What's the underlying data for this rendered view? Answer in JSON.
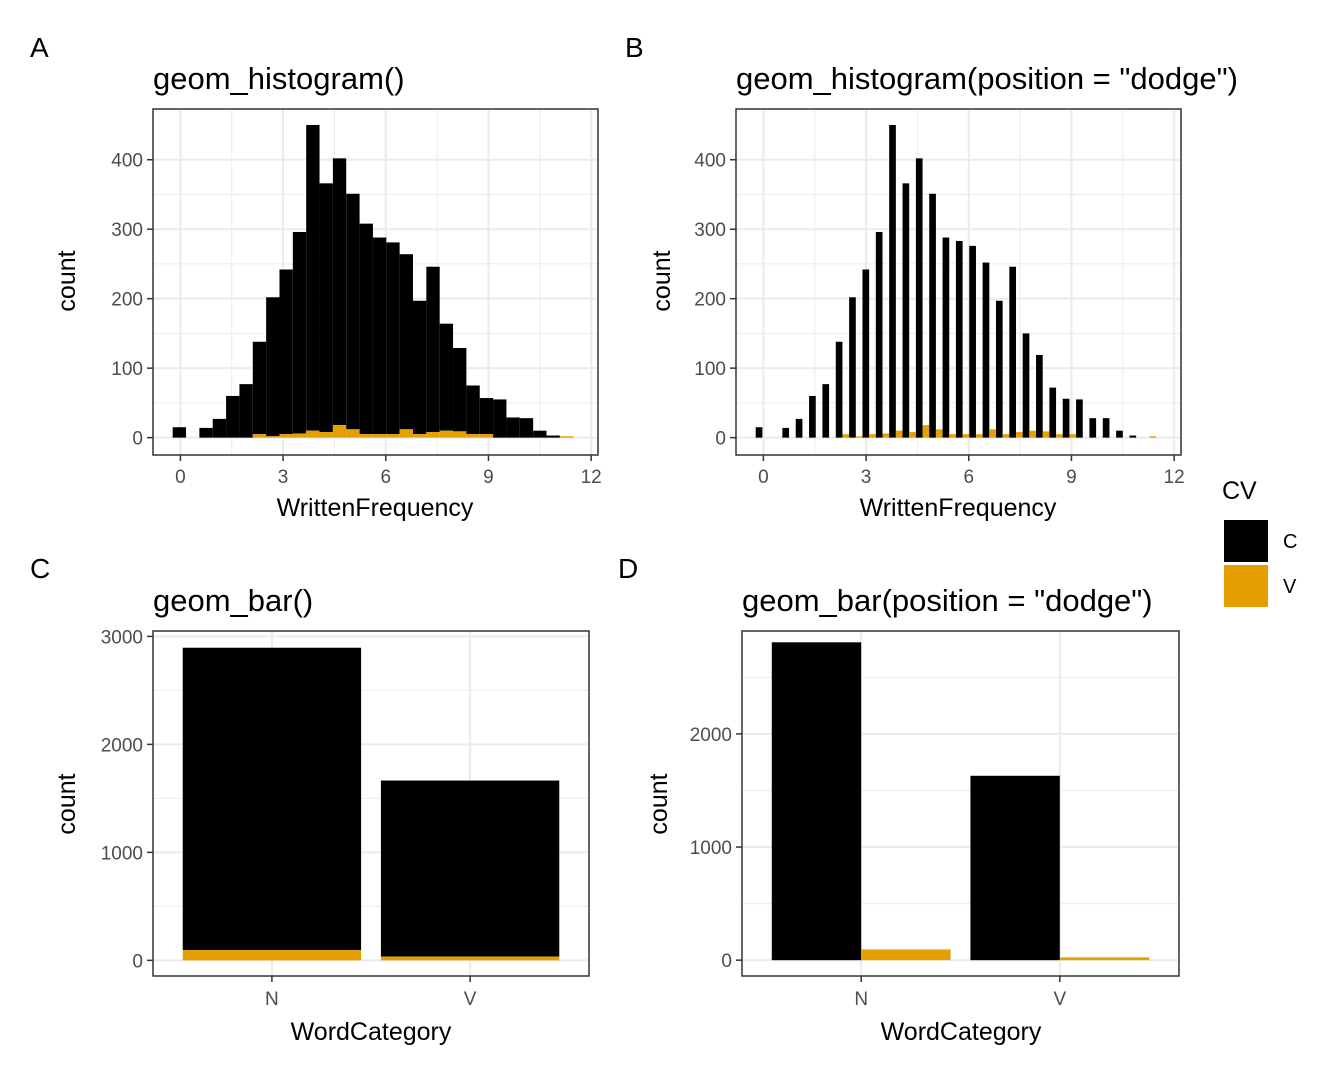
{
  "legend": {
    "title": "CV",
    "items": [
      {
        "label": "C",
        "color": "#000000"
      },
      {
        "label": "V",
        "color": "#E69F00"
      }
    ]
  },
  "chart_data": [
    {
      "tag": "A",
      "type": "bar",
      "subtype": "histogram-stacked",
      "title": "geom_histogram()",
      "xlabel": "WrittenFrequency",
      "ylabel": "count",
      "xlim": [
        -0.8,
        12.2
      ],
      "ylim": [
        -25,
        473
      ],
      "xticks": [
        0,
        3,
        6,
        9,
        12
      ],
      "yticks": [
        0,
        100,
        200,
        300,
        400
      ],
      "bin_width": 0.39,
      "bins": [
        {
          "x": -0.03,
          "C": 15,
          "V": 0
        },
        {
          "x": 0.75,
          "C": 14,
          "V": 0
        },
        {
          "x": 1.14,
          "C": 27,
          "V": 0
        },
        {
          "x": 1.53,
          "C": 60,
          "V": 0
        },
        {
          "x": 1.92,
          "C": 77,
          "V": 0
        },
        {
          "x": 2.31,
          "C": 133,
          "V": 5
        },
        {
          "x": 2.7,
          "C": 200,
          "V": 2
        },
        {
          "x": 3.09,
          "C": 237,
          "V": 5
        },
        {
          "x": 3.48,
          "C": 290,
          "V": 6
        },
        {
          "x": 3.87,
          "C": 440,
          "V": 10
        },
        {
          "x": 4.26,
          "C": 358,
          "V": 8
        },
        {
          "x": 4.65,
          "C": 384,
          "V": 18
        },
        {
          "x": 5.04,
          "C": 339,
          "V": 12
        },
        {
          "x": 5.43,
          "C": 303,
          "V": 5
        },
        {
          "x": 5.82,
          "C": 283,
          "V": 5
        },
        {
          "x": 6.21,
          "C": 276,
          "V": 5
        },
        {
          "x": 6.6,
          "C": 252,
          "V": 12
        },
        {
          "x": 6.99,
          "C": 192,
          "V": 5
        },
        {
          "x": 7.38,
          "C": 238,
          "V": 8
        },
        {
          "x": 7.77,
          "C": 154,
          "V": 10
        },
        {
          "x": 8.16,
          "C": 120,
          "V": 9
        },
        {
          "x": 8.55,
          "C": 70,
          "V": 5
        },
        {
          "x": 8.94,
          "C": 52,
          "V": 5
        },
        {
          "x": 9.33,
          "C": 55,
          "V": 0
        },
        {
          "x": 9.72,
          "C": 29,
          "V": 0
        },
        {
          "x": 10.11,
          "C": 28,
          "V": 0
        },
        {
          "x": 10.5,
          "C": 10,
          "V": 0
        },
        {
          "x": 10.89,
          "C": 3,
          "V": 0
        },
        {
          "x": 11.28,
          "C": 0,
          "V": 2
        }
      ]
    },
    {
      "tag": "B",
      "type": "bar",
      "subtype": "histogram-dodge",
      "title": "geom_histogram(position = \"dodge\")",
      "xlabel": "WrittenFrequency",
      "ylabel": "count",
      "xlim": [
        -0.8,
        12.2
      ],
      "ylim": [
        -25,
        473
      ],
      "xticks": [
        0,
        3,
        6,
        9,
        12
      ],
      "yticks": [
        0,
        100,
        200,
        300,
        400
      ],
      "bin_width": 0.39,
      "bins": [
        {
          "x": -0.03,
          "C": 15,
          "V": 0
        },
        {
          "x": 0.75,
          "C": 14,
          "V": 0
        },
        {
          "x": 1.14,
          "C": 27,
          "V": 0
        },
        {
          "x": 1.53,
          "C": 60,
          "V": 0
        },
        {
          "x": 1.92,
          "C": 77,
          "V": 0
        },
        {
          "x": 2.31,
          "C": 138,
          "V": 5
        },
        {
          "x": 2.7,
          "C": 202,
          "V": 2
        },
        {
          "x": 3.09,
          "C": 242,
          "V": 5
        },
        {
          "x": 3.48,
          "C": 296,
          "V": 6
        },
        {
          "x": 3.87,
          "C": 450,
          "V": 10
        },
        {
          "x": 4.26,
          "C": 366,
          "V": 8
        },
        {
          "x": 4.65,
          "C": 402,
          "V": 18
        },
        {
          "x": 5.04,
          "C": 351,
          "V": 12
        },
        {
          "x": 5.43,
          "C": 288,
          "V": 5
        },
        {
          "x": 5.82,
          "C": 283,
          "V": 5
        },
        {
          "x": 6.21,
          "C": 276,
          "V": 5
        },
        {
          "x": 6.6,
          "C": 252,
          "V": 12
        },
        {
          "x": 6.99,
          "C": 197,
          "V": 5
        },
        {
          "x": 7.38,
          "C": 246,
          "V": 8
        },
        {
          "x": 7.77,
          "C": 150,
          "V": 10
        },
        {
          "x": 8.16,
          "C": 119,
          "V": 9
        },
        {
          "x": 8.55,
          "C": 72,
          "V": 5
        },
        {
          "x": 8.94,
          "C": 56,
          "V": 5
        },
        {
          "x": 9.33,
          "C": 55,
          "V": 0
        },
        {
          "x": 9.72,
          "C": 28,
          "V": 0
        },
        {
          "x": 10.11,
          "C": 28,
          "V": 0
        },
        {
          "x": 10.5,
          "C": 10,
          "V": 0
        },
        {
          "x": 10.89,
          "C": 3,
          "V": 0
        },
        {
          "x": 11.28,
          "C": 0,
          "V": 2
        }
      ]
    },
    {
      "tag": "C",
      "type": "bar",
      "subtype": "stacked",
      "title": "geom_bar()",
      "xlabel": "WordCategory",
      "ylabel": "count",
      "categories": [
        "N",
        "V"
      ],
      "series": [
        {
          "name": "C",
          "values": [
            2800,
            1630
          ]
        },
        {
          "name": "V",
          "values": [
            95,
            35
          ]
        }
      ],
      "ylim": [
        -145,
        3050
      ],
      "yticks": [
        0,
        1000,
        2000,
        3000
      ],
      "ytick_labels": [
        "0",
        "1000",
        "2000",
        "3000"
      ]
    },
    {
      "tag": "D",
      "type": "bar",
      "subtype": "dodge",
      "title": "geom_bar(position = \"dodge\")",
      "xlabel": "WordCategory",
      "ylabel": "count",
      "categories": [
        "N",
        "V"
      ],
      "series": [
        {
          "name": "C",
          "values": [
            2810,
            1630
          ]
        },
        {
          "name": "V",
          "values": [
            95,
            25
          ]
        }
      ],
      "ylim": [
        -140,
        2910
      ],
      "yticks": [
        0,
        1000,
        2000
      ],
      "ytick_labels": [
        "0",
        "1000",
        "2000"
      ]
    }
  ]
}
